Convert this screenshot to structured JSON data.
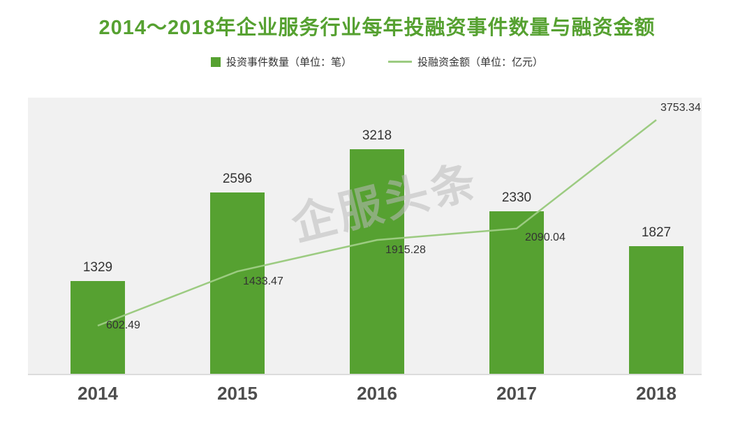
{
  "chart_data": {
    "type": "combo",
    "title": "2014～2018年企业服务行业每年投融资事件数量与融资金额",
    "categories": [
      "2014",
      "2015",
      "2016",
      "2017",
      "2018"
    ],
    "series": [
      {
        "name": "投资事件数量（单位：笔）",
        "type": "bar",
        "values": [
          1329,
          2596,
          3218,
          2330,
          1827
        ]
      },
      {
        "name": "投融资金额（单位：亿元）",
        "type": "line",
        "values": [
          602.49,
          1433.47,
          1915.28,
          2090.04,
          3753.34
        ]
      }
    ],
    "legend_position": "top",
    "grid": false,
    "watermark": "企服头条",
    "ylim_bars": [
      0,
      4000
    ],
    "ylim_line": [
      0,
      4000
    ],
    "colors": {
      "bar": "#56A131",
      "line": "#9CCB81",
      "title": "#56A131",
      "value_label": "#333333",
      "axis_label": "#4D4D4D",
      "plot_bg": "#F1F1F1"
    }
  }
}
